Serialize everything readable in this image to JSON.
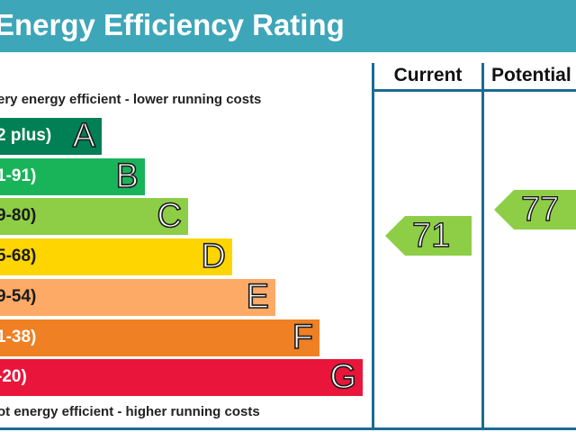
{
  "header": {
    "title": "Energy Efficiency Rating"
  },
  "columns": {
    "current": "Current",
    "potential": "Potential"
  },
  "captions": {
    "top": "ery energy efficient - lower running costs",
    "bottom": "ot energy efficient - higher running costs"
  },
  "chart_data": {
    "type": "bar",
    "title": "Energy Efficiency Rating",
    "bands": [
      {
        "letter": "A",
        "range": "2 plus)",
        "color": "#008054"
      },
      {
        "letter": "B",
        "range": "1-91)",
        "color": "#19b459"
      },
      {
        "letter": "C",
        "range": "9-80)",
        "color": "#8dce46"
      },
      {
        "letter": "D",
        "range": "5-68)",
        "color": "#ffd500"
      },
      {
        "letter": "E",
        "range": "9-54)",
        "color": "#fcaa65"
      },
      {
        "letter": "F",
        "range": "1-38)",
        "color": "#ef8023"
      },
      {
        "letter": "G",
        "range": "-20)",
        "color": "#e9153b"
      }
    ],
    "ratings": [
      {
        "column": "Current",
        "value": 71,
        "band": "C",
        "color": "#8dce46"
      },
      {
        "column": "Potential",
        "value": 77,
        "band": "C",
        "color": "#8dce46"
      }
    ]
  }
}
